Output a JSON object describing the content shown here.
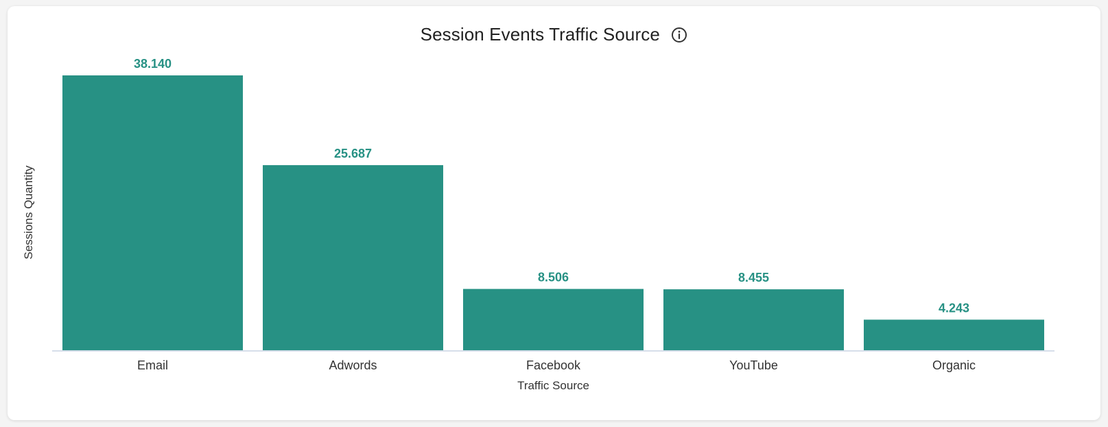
{
  "card": {
    "title": "Session Events Traffic Source",
    "info_icon": "info-circle-icon"
  },
  "colors": {
    "bar": "#279184",
    "label": "#279184",
    "axis": "#c9d3e3"
  },
  "chart_data": {
    "type": "bar",
    "title": "Session Events Traffic Source",
    "xlabel": "Traffic Source",
    "ylabel": "Sessions Quantity",
    "categories": [
      "Email",
      "Adwords",
      "Facebook",
      "YouTube",
      "Organic"
    ],
    "values": [
      38140,
      25687,
      8506,
      8455,
      4243
    ],
    "value_labels": [
      "38.140",
      "25.687",
      "8.506",
      "8.455",
      "4.243"
    ],
    "ylim": [
      0,
      38140
    ],
    "grid": false,
    "legend": "none"
  }
}
